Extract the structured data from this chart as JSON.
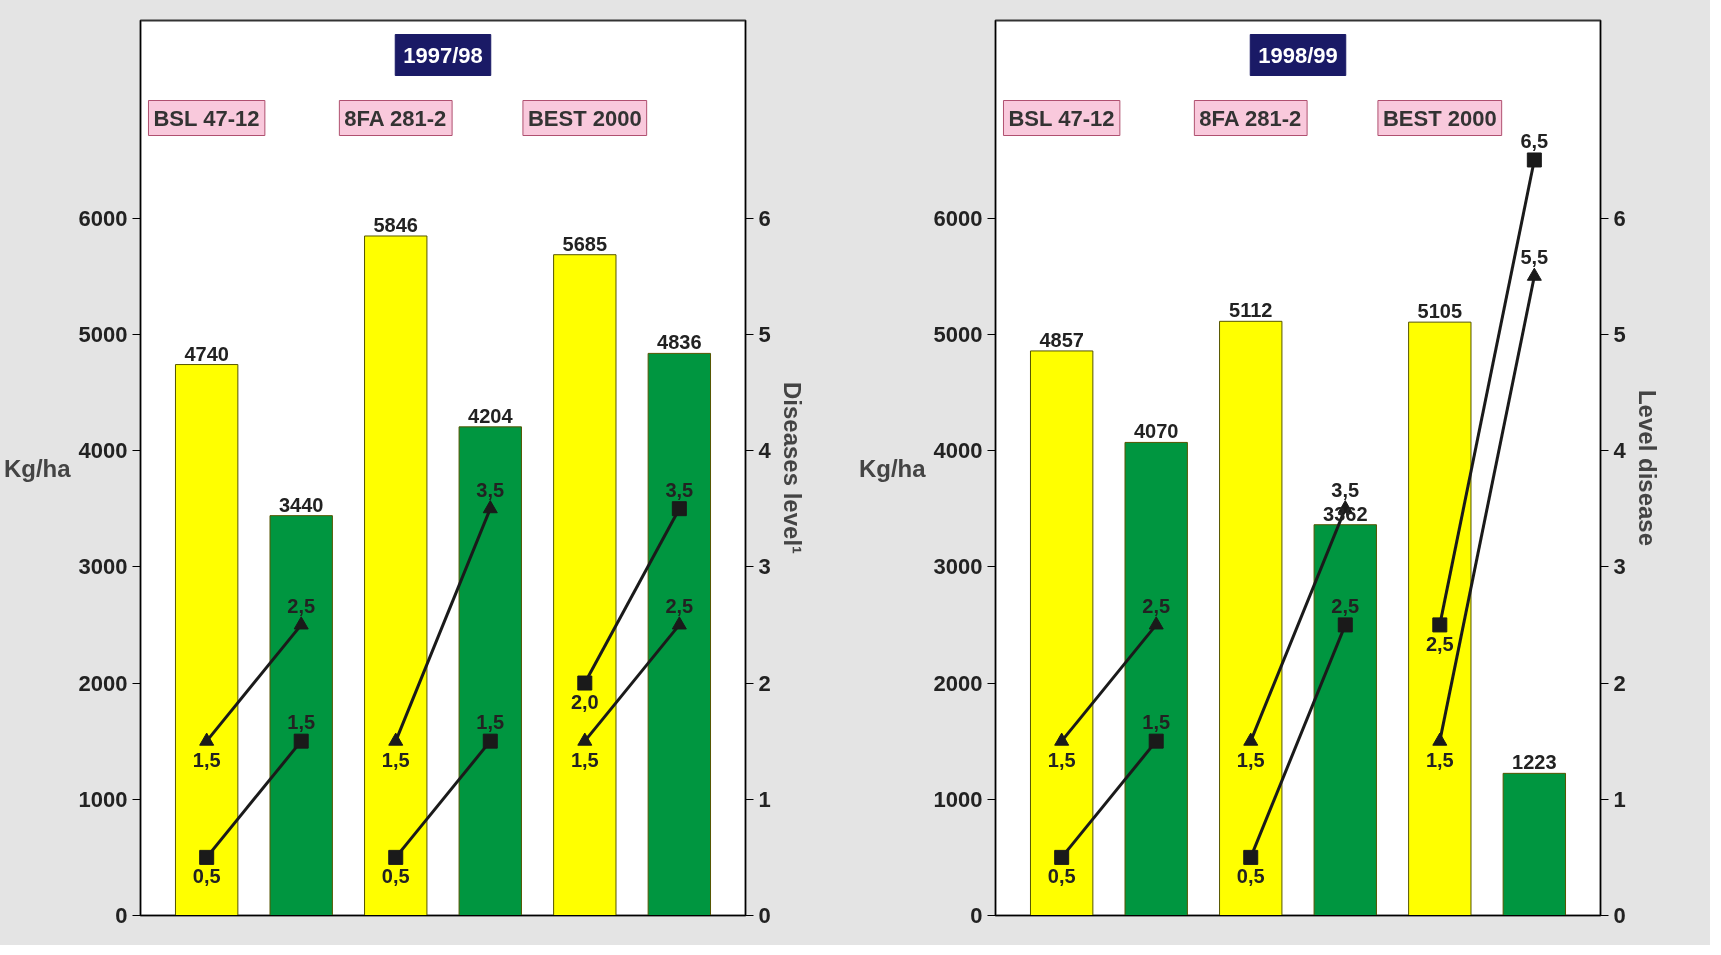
{
  "chart_data": [
    {
      "type": "bar",
      "title": "1997/98",
      "ylabel": "Kg/ha",
      "y2label": "Diseases level¹",
      "data_labels": true,
      "categories": [
        "BSL 47-12",
        null,
        "8FA 281-2",
        null,
        "BEST 2000",
        null
      ],
      "ylim": [
        0,
        7700
      ],
      "yticks": [
        0,
        1000,
        2000,
        3000,
        4000,
        5000,
        6000
      ],
      "y2lim": [
        0,
        7.7
      ],
      "y2ticks": [
        0,
        1,
        2,
        3,
        4,
        5,
        6
      ],
      "series": [
        {
          "colors": [
            "#ffff00",
            "#009640",
            "#ffff00",
            "#009640",
            "#ffff00",
            "#009640"
          ],
          "values": [
            4740,
            3440,
            5846,
            4204,
            5685,
            4836
          ]
        },
        {
          "type": "line",
          "axis": "y2",
          "color": "#1a1a1a",
          "marker": "triangle",
          "values": [
            1.5,
            2.5,
            null,
            null,
            null,
            null
          ],
          "value_labels": [
            "1,5",
            "2,5",
            null,
            null,
            null,
            null
          ]
        },
        {
          "type": "line",
          "axis": "y2",
          "color": "#1a1a1a",
          "marker": "square",
          "values": [
            0.5,
            1.5,
            null,
            null,
            null,
            null
          ],
          "value_labels": [
            "0,5",
            "1,5",
            null,
            null,
            null,
            null
          ]
        },
        {
          "type": "line",
          "axis": "y2",
          "color": "#1a1a1a",
          "marker": "triangle",
          "values": [
            null,
            null,
            1.5,
            3.5,
            null,
            null
          ],
          "value_labels": [
            null,
            null,
            "1,5",
            "3,5",
            null,
            null
          ]
        },
        {
          "type": "line",
          "axis": "y2",
          "color": "#1a1a1a",
          "marker": "square",
          "values": [
            null,
            null,
            0.5,
            1.5,
            null,
            null
          ],
          "value_labels": [
            null,
            null,
            "0,5",
            "1,5",
            null,
            null
          ]
        },
        {
          "type": "line",
          "axis": "y2",
          "color": "#1a1a1a",
          "marker": "triangle",
          "values": [
            null,
            null,
            null,
            null,
            1.5,
            2.5
          ],
          "value_labels": [
            null,
            null,
            null,
            null,
            "1,5",
            "2,5"
          ]
        },
        {
          "type": "line",
          "axis": "y2",
          "color": "#1a1a1a",
          "marker": "square",
          "values": [
            null,
            null,
            null,
            null,
            2.0,
            3.5
          ],
          "value_labels": [
            null,
            null,
            null,
            null,
            "2,0",
            "3,5"
          ]
        }
      ]
    },
    {
      "type": "bar",
      "title": "1998/99",
      "ylabel": "Kg/ha",
      "y2label": "Level disease",
      "data_labels": true,
      "categories": [
        "BSL 47-12",
        null,
        "8FA 281-2",
        null,
        "BEST 2000",
        null
      ],
      "ylim": [
        0,
        7700
      ],
      "yticks": [
        0,
        1000,
        2000,
        3000,
        4000,
        5000,
        6000
      ],
      "y2lim": [
        0,
        7.7
      ],
      "y2ticks": [
        0,
        1,
        2,
        3,
        4,
        5,
        6
      ],
      "series": [
        {
          "colors": [
            "#ffff00",
            "#009640",
            "#ffff00",
            "#009640",
            "#ffff00",
            "#009640"
          ],
          "values": [
            4857,
            4070,
            5112,
            3362,
            5105,
            1223
          ]
        },
        {
          "type": "line",
          "axis": "y2",
          "color": "#1a1a1a",
          "marker": "triangle",
          "values": [
            1.5,
            2.5,
            null,
            null,
            null,
            null
          ],
          "value_labels": [
            "1,5",
            "2,5",
            null,
            null,
            null,
            null
          ]
        },
        {
          "type": "line",
          "axis": "y2",
          "color": "#1a1a1a",
          "marker": "square",
          "values": [
            0.5,
            1.5,
            null,
            null,
            null,
            null
          ],
          "value_labels": [
            "0,5",
            "1,5",
            null,
            null,
            null,
            null
          ]
        },
        {
          "type": "line",
          "axis": "y2",
          "color": "#1a1a1a",
          "marker": "triangle",
          "values": [
            null,
            null,
            1.5,
            3.5,
            null,
            null
          ],
          "value_labels": [
            null,
            null,
            "1,5",
            "3,5",
            null,
            null
          ]
        },
        {
          "type": "line",
          "axis": "y2",
          "color": "#1a1a1a",
          "marker": "square",
          "values": [
            null,
            null,
            0.5,
            2.5,
            null,
            null
          ],
          "value_labels": [
            null,
            null,
            "0,5",
            "2,5",
            null,
            null
          ]
        },
        {
          "type": "line",
          "axis": "y2",
          "color": "#1a1a1a",
          "marker": "triangle",
          "values": [
            null,
            null,
            null,
            null,
            1.5,
            5.5
          ],
          "value_labels": [
            null,
            null,
            null,
            null,
            "1,5",
            "5,5"
          ]
        },
        {
          "type": "line",
          "axis": "y2",
          "color": "#1a1a1a",
          "marker": "square",
          "values": [
            null,
            null,
            null,
            null,
            2.5,
            6.5
          ],
          "value_labels": [
            null,
            null,
            null,
            null,
            "2,5",
            "6,5"
          ]
        }
      ]
    }
  ]
}
